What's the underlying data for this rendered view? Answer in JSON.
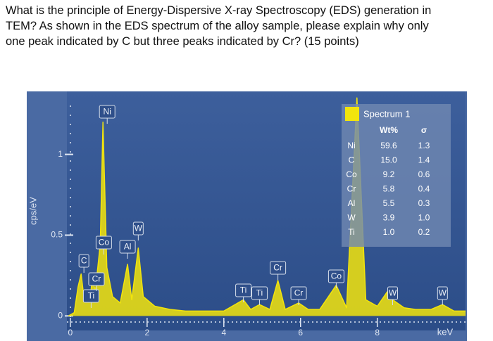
{
  "question": [
    "What is the principle of Energy-Dispersive X-ray Spectroscopy (EDS) generation in",
    "TEM? As shown in the EDS spectrum of the alloy sample, please explain why only",
    "one peak indicated by C but three peaks indicated by Cr? (15 points)"
  ],
  "chart_data": {
    "type": "line",
    "ylabel": "cps/eV",
    "xlabel": "keV",
    "xlim": [
      -0.09,
      10.3
    ],
    "ylim": [
      -0.09,
      1.39
    ],
    "xticks": [
      0,
      2,
      4,
      6,
      8
    ],
    "yticks": [
      0,
      0.5,
      1
    ],
    "series": [
      {
        "name": "Spectrum 1",
        "color": "#f2e40c",
        "x": [
          -0.05,
          0.1,
          0.2,
          0.28,
          0.35,
          0.45,
          0.52,
          0.57,
          0.65,
          0.78,
          0.85,
          0.95,
          1.1,
          1.3,
          1.49,
          1.6,
          1.77,
          1.9,
          2.2,
          2.6,
          3.0,
          3.5,
          4.0,
          4.51,
          4.7,
          4.93,
          5.2,
          5.41,
          5.6,
          5.95,
          6.2,
          6.5,
          6.93,
          7.2,
          7.47,
          7.7,
          8.0,
          8.26,
          8.4,
          8.7,
          9.0,
          9.4,
          9.7,
          10.0,
          10.3
        ],
        "values": [
          0,
          0.02,
          0.18,
          0.26,
          0.12,
          0.15,
          0.1,
          0.25,
          0.15,
          0.45,
          1.2,
          0.3,
          0.12,
          0.08,
          0.32,
          0.1,
          0.42,
          0.12,
          0.06,
          0.04,
          0.03,
          0.03,
          0.03,
          0.1,
          0.04,
          0.07,
          0.04,
          0.22,
          0.04,
          0.08,
          0.04,
          0.04,
          0.19,
          0.05,
          1.35,
          0.1,
          0.06,
          0.15,
          0.1,
          0.05,
          0.04,
          0.04,
          0.07,
          0.03,
          0.03
        ]
      }
    ],
    "annotations": [
      {
        "text": "C",
        "x": 0.28
      },
      {
        "text": "Ti",
        "x": 0.45
      },
      {
        "text": "Cr",
        "x": 0.57
      },
      {
        "text": "Co",
        "x": 0.78
      },
      {
        "text": "Ni",
        "x": 0.85
      },
      {
        "text": "Al",
        "x": 1.49
      },
      {
        "text": "W",
        "x": 1.77
      },
      {
        "text": "Ti",
        "x": 4.51
      },
      {
        "text": "Ti",
        "x": 4.93
      },
      {
        "text": "Cr",
        "x": 5.41
      },
      {
        "text": "Cr",
        "x": 5.95
      },
      {
        "text": "Co",
        "x": 6.93
      },
      {
        "text": "W",
        "x": 8.4
      },
      {
        "text": "W",
        "x": 9.7
      }
    ],
    "table": {
      "header": [
        "Wt%",
        "σ"
      ],
      "rows": [
        [
          "Ni",
          "59.6",
          "1.3"
        ],
        [
          "C",
          "15.0",
          "1.4"
        ],
        [
          "Co",
          "9.2",
          "0.6"
        ],
        [
          "Cr",
          "5.8",
          "0.4"
        ],
        [
          "Al",
          "5.5",
          "0.3"
        ],
        [
          "W",
          "3.9",
          "1.0"
        ],
        [
          "Ti",
          "1.0",
          "0.2"
        ]
      ]
    }
  }
}
